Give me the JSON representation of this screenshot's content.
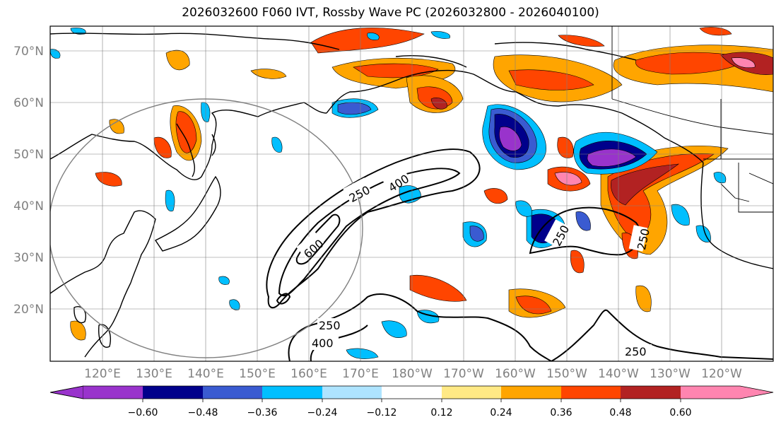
{
  "title": "2026032600 F060 IVT, Rossby Wave PC (2026032800 - 2026040100)",
  "lat_labels": [
    "70°N",
    "60°N",
    "50°N",
    "40°N",
    "30°N",
    "20°N"
  ],
  "lon_labels": [
    "120°E",
    "130°E",
    "140°E",
    "150°E",
    "160°E",
    "170°E",
    "180°W",
    "170°W",
    "160°W",
    "150°W",
    "140°W",
    "130°W",
    "120°W"
  ],
  "contour_labels": [
    "250",
    "400",
    "600",
    "250",
    "400",
    "250",
    "250",
    "250"
  ],
  "colorbar": {
    "ticks": [
      "−0.60",
      "−0.48",
      "−0.36",
      "−0.24",
      "−0.12",
      "0.12",
      "0.24",
      "0.36",
      "0.48",
      "0.60"
    ],
    "colors": [
      "#9933cc",
      "#00008b",
      "#3a5bd1",
      "#00bfff",
      "#aee4ff",
      "#ffffff",
      "#ffe985",
      "#ffa500",
      "#ff4500",
      "#b22222",
      "#ff85b0"
    ]
  }
}
